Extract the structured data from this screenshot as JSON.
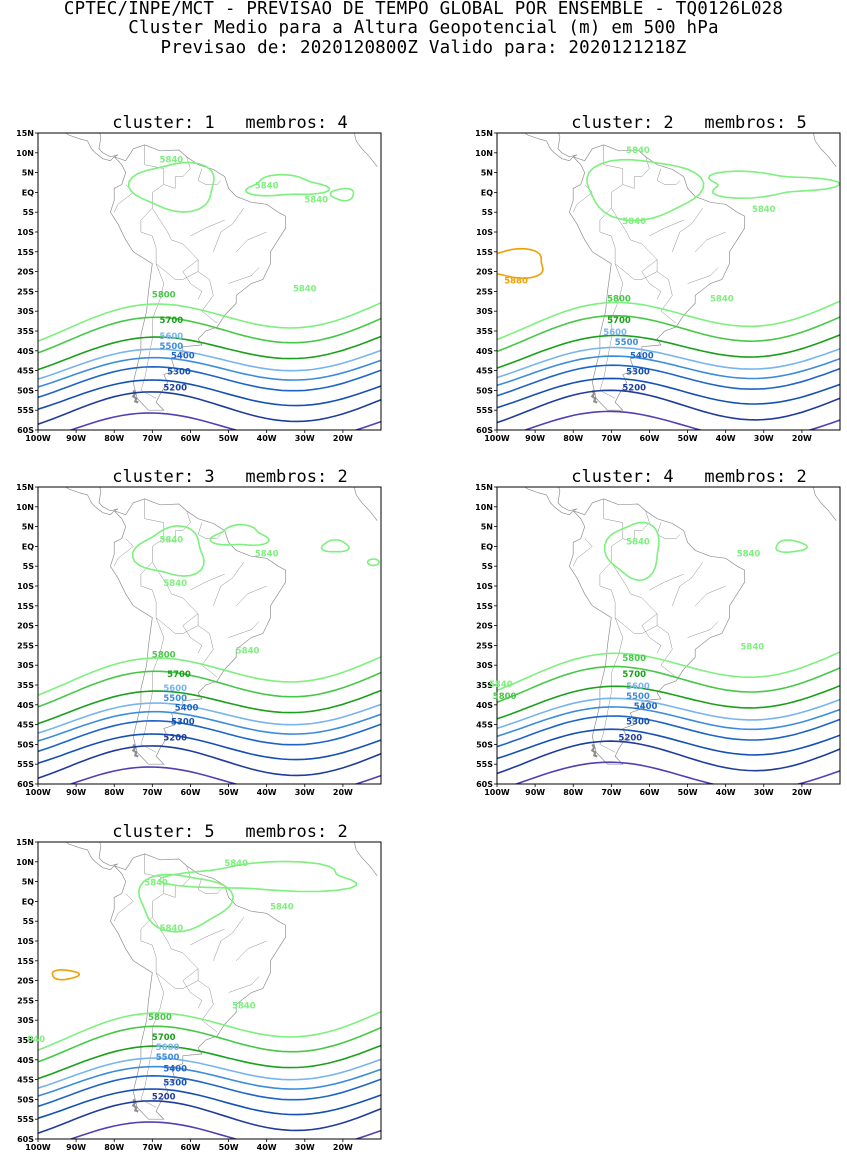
{
  "header": {
    "line1": "CPTEC/INPE/MCT - PREVISAO DE TEMPO GLOBAL POR ENSEMBLE - TQ0126L028",
    "line2": "Cluster Medio para a Altura Geopotencial (m) em 500 hPa",
    "line3": "Previsao de: 2020120800Z    Valido para: 2020121218Z"
  },
  "axes": {
    "lat_labels": [
      "15N",
      "10N",
      "5N",
      "EQ",
      "5S",
      "10S",
      "15S",
      "20S",
      "25S",
      "30S",
      "35S",
      "40S",
      "45S",
      "50S",
      "55S",
      "60S"
    ],
    "lon_labels": [
      "100W",
      "90W",
      "80W",
      "70W",
      "60W",
      "50W",
      "40W",
      "30W",
      "20W"
    ]
  },
  "colors": {
    "c5840": "#7df07d",
    "c5800": "#46c846",
    "c5700": "#1aa01a",
    "c5600": "#78b4f0",
    "c5500": "#3c8cdc",
    "c5400": "#1e64c8",
    "c5300": "#1450b4",
    "c5200": "#1e3c9c",
    "c5100": "#5040b4",
    "c5880": "#f0a000",
    "coast": "#909090"
  },
  "panels": [
    {
      "title": "cluster: 1   membros: 4",
      "labels": [
        {
          "text": "5840",
          "color": "#7df07d"
        },
        {
          "text": "5840",
          "color": "#7df07d"
        },
        {
          "text": "5840",
          "color": "#7df07d"
        },
        {
          "text": "5840",
          "color": "#7df07d"
        },
        {
          "text": "5800",
          "color": "#46c846"
        },
        {
          "text": "5700",
          "color": "#1aa01a"
        },
        {
          "text": "5600",
          "color": "#78b4f0"
        },
        {
          "text": "5500",
          "color": "#3c8cdc"
        },
        {
          "text": "5400",
          "color": "#1e64c8"
        },
        {
          "text": "5300",
          "color": "#1450b4"
        },
        {
          "text": "5200",
          "color": "#1e3c9c"
        }
      ]
    },
    {
      "title": "cluster: 2   membros: 5",
      "labels": [
        {
          "text": "5840",
          "color": "#7df07d"
        },
        {
          "text": "5840",
          "color": "#7df07d"
        },
        {
          "text": "5840",
          "color": "#7df07d"
        },
        {
          "text": "5880",
          "color": "#f0a000"
        },
        {
          "text": "5840",
          "color": "#7df07d"
        },
        {
          "text": "5800",
          "color": "#46c846"
        },
        {
          "text": "5700",
          "color": "#1aa01a"
        },
        {
          "text": "5600",
          "color": "#78b4f0"
        },
        {
          "text": "5500",
          "color": "#3c8cdc"
        },
        {
          "text": "5400",
          "color": "#1e64c8"
        },
        {
          "text": "5300",
          "color": "#1450b4"
        },
        {
          "text": "5200",
          "color": "#1e3c9c"
        }
      ]
    },
    {
      "title": "cluster: 3   membros: 2",
      "labels": [
        {
          "text": "5840",
          "color": "#7df07d"
        },
        {
          "text": "5840",
          "color": "#7df07d"
        },
        {
          "text": "5840",
          "color": "#7df07d"
        },
        {
          "text": "5840",
          "color": "#7df07d"
        },
        {
          "text": "5800",
          "color": "#46c846"
        },
        {
          "text": "5700",
          "color": "#1aa01a"
        },
        {
          "text": "5600",
          "color": "#78b4f0"
        },
        {
          "text": "5500",
          "color": "#3c8cdc"
        },
        {
          "text": "5400",
          "color": "#1e64c8"
        },
        {
          "text": "5300",
          "color": "#1450b4"
        },
        {
          "text": "5200",
          "color": "#1e3c9c"
        }
      ]
    },
    {
      "title": "cluster: 4   membros: 2",
      "labels": [
        {
          "text": "5840",
          "color": "#7df07d"
        },
        {
          "text": "5840",
          "color": "#7df07d"
        },
        {
          "text": "5840",
          "color": "#7df07d"
        },
        {
          "text": "5840",
          "color": "#7df07d"
        },
        {
          "text": "5800",
          "color": "#46c846"
        },
        {
          "text": "5800",
          "color": "#46c846"
        },
        {
          "text": "5700",
          "color": "#1aa01a"
        },
        {
          "text": "5600",
          "color": "#78b4f0"
        },
        {
          "text": "5500",
          "color": "#3c8cdc"
        },
        {
          "text": "5400",
          "color": "#1e64c8"
        },
        {
          "text": "5300",
          "color": "#1450b4"
        },
        {
          "text": "5200",
          "color": "#1e3c9c"
        }
      ]
    },
    {
      "title": "cluster: 5   membros: 2",
      "labels": [
        {
          "text": "5840",
          "color": "#7df07d"
        },
        {
          "text": "5840",
          "color": "#7df07d"
        },
        {
          "text": "5840",
          "color": "#7df07d"
        },
        {
          "text": "5840",
          "color": "#7df07d"
        },
        {
          "text": "5840",
          "color": "#7df07d"
        },
        {
          "text": "840",
          "color": "#7df07d"
        },
        {
          "text": "5800",
          "color": "#46c846"
        },
        {
          "text": "5700",
          "color": "#1aa01a"
        },
        {
          "text": "5600",
          "color": "#78b4f0"
        },
        {
          "text": "5500",
          "color": "#3c8cdc"
        },
        {
          "text": "5400",
          "color": "#1e64c8"
        },
        {
          "text": "5300",
          "color": "#1450b4"
        },
        {
          "text": "5200",
          "color": "#1e3c9c"
        }
      ]
    }
  ]
}
